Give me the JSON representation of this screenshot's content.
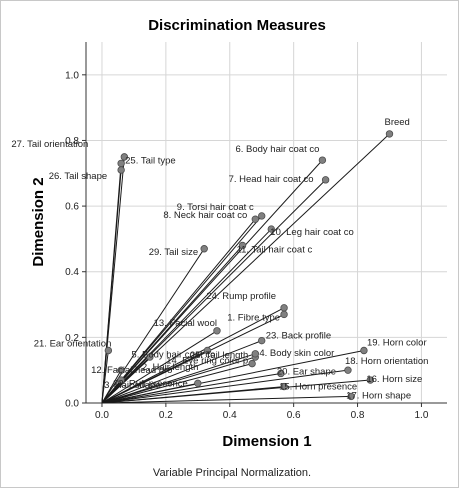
{
  "chart_data": {
    "type": "scatter",
    "title": "Discrimination Measures",
    "xlabel": "Dimension 1",
    "ylabel": "Dimension 2",
    "footnote": "Variable Principal Normalization.",
    "xlim": [
      -0.05,
      1.08
    ],
    "ylim": [
      0.0,
      1.1
    ],
    "xticks": [
      "0.0",
      "0.2",
      "0.4",
      "0.6",
      "0.8",
      "1.0"
    ],
    "yticks": [
      "0.0",
      "0.2",
      "0.4",
      "0.6",
      "0.8",
      "1.0"
    ],
    "grid": true,
    "vectors_from_origin": true,
    "points": [
      {
        "label": "Breed",
        "x": 0.9,
        "y": 0.82
      },
      {
        "label": "27. Tail orientation",
        "x": 0.07,
        "y": 0.75
      },
      {
        "label": "25. Tail type",
        "x": 0.06,
        "y": 0.73
      },
      {
        "label": "26. Tail shape",
        "x": 0.06,
        "y": 0.71
      },
      {
        "label": "6. Body hair coat co",
        "x": 0.69,
        "y": 0.74
      },
      {
        "label": "7. Head hair coat co",
        "x": 0.7,
        "y": 0.68
      },
      {
        "label": "9. Torsi hair coat c",
        "x": 0.5,
        "y": 0.57
      },
      {
        "label": "8. Neck hair coat co",
        "x": 0.48,
        "y": 0.56
      },
      {
        "label": "10. Leg hair coat co",
        "x": 0.53,
        "y": 0.53
      },
      {
        "label": "11. Tail hair coat c",
        "x": 0.44,
        "y": 0.48
      },
      {
        "label": "29. Tail size",
        "x": 0.32,
        "y": 0.47
      },
      {
        "label": "24. Rump profile",
        "x": 0.57,
        "y": 0.29
      },
      {
        "label": "1. Fibre type",
        "x": 0.57,
        "y": 0.27
      },
      {
        "label": "13. Facial wool",
        "x": 0.36,
        "y": 0.22
      },
      {
        "label": "23. Back profile",
        "x": 0.5,
        "y": 0.19
      },
      {
        "label": "21. Ear orientation",
        "x": 0.02,
        "y": 0.16
      },
      {
        "label": "5. Body hair coat co",
        "x": 0.33,
        "y": 0.16
      },
      {
        "label": "19. Horn color",
        "x": 0.82,
        "y": 0.16
      },
      {
        "label": "2. Hair length",
        "x": 0.15,
        "y": 0.14
      },
      {
        "label": "25. Tail length",
        "x": 0.48,
        "y": 0.14
      },
      {
        "label": "4. Body skin color",
        "x": 0.48,
        "y": 0.15
      },
      {
        "label": "18. Horn orientation",
        "x": 0.77,
        "y": 0.1
      },
      {
        "label": "14. Eye ring color p",
        "x": 0.47,
        "y": 0.12
      },
      {
        "label": "12. Facial head pro",
        "x": 0.06,
        "y": 0.1
      },
      {
        "label": "20. Ear shape",
        "x": 0.56,
        "y": 0.09
      },
      {
        "label": "16. Horn size",
        "x": 0.84,
        "y": 0.07
      },
      {
        "label": "3. Hair shape",
        "x": 0.06,
        "y": 0.07
      },
      {
        "label": "22. Ruff presence",
        "x": 0.3,
        "y": 0.06
      },
      {
        "label": "15. Horn presence",
        "x": 0.57,
        "y": 0.05
      },
      {
        "label": "17. Horn shape",
        "x": 0.78,
        "y": 0.02
      }
    ]
  }
}
